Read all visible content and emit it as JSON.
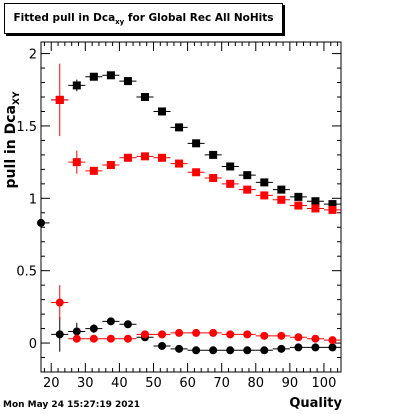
{
  "title": {
    "main": "Fitted pull in Dca",
    "sub": "xy",
    "tail": "for Global Rec All NoHits"
  },
  "ylabel": {
    "main": "pull in Dca",
    "sub": "XY"
  },
  "xlabel": "Quality",
  "timestamp": "Mon May 24 15:27:19 2021",
  "colors": {
    "black": "#000000",
    "red": "#ff0000",
    "frame": "#000000"
  },
  "chart_data": {
    "type": "scatter",
    "xlim": [
      17,
      105
    ],
    "ylim": [
      -0.2,
      2.08
    ],
    "xticks": [
      20,
      30,
      40,
      50,
      60,
      70,
      80,
      90,
      100
    ],
    "yticks": [
      0,
      0.5,
      1,
      1.5,
      2
    ],
    "ytick_labels": [
      "0",
      "0.5",
      "1",
      "1.5",
      "2"
    ],
    "grid": false,
    "series": [
      {
        "marker": "square",
        "color": "black",
        "x": [
          22.5,
          27.5,
          32.5,
          37.5,
          42.5,
          47.5,
          52.5,
          57.5,
          62.5,
          67.5,
          72.5,
          77.5,
          82.5,
          87.5,
          92.5,
          97.5,
          102.5
        ],
        "y": [
          1.68,
          1.78,
          1.84,
          1.85,
          1.81,
          1.7,
          1.6,
          1.49,
          1.38,
          1.3,
          1.22,
          1.16,
          1.11,
          1.06,
          1.01,
          0.98,
          0.96
        ],
        "yerr": [
          0,
          0.04,
          0.02,
          0.02,
          0,
          0,
          0,
          0,
          0,
          0,
          0,
          0,
          0,
          0,
          0,
          0,
          0
        ]
      },
      {
        "marker": "square",
        "color": "red",
        "x": [
          22.5,
          27.5,
          32.5,
          37.5,
          42.5,
          47.5,
          52.5,
          57.5,
          62.5,
          67.5,
          72.5,
          77.5,
          82.5,
          87.5,
          92.5,
          97.5,
          102.5
        ],
        "y": [
          1.68,
          1.25,
          1.19,
          1.23,
          1.28,
          1.29,
          1.28,
          1.24,
          1.18,
          1.14,
          1.1,
          1.06,
          1.02,
          0.99,
          0.95,
          0.93,
          0.92
        ],
        "yerr": [
          0.25,
          0.08,
          0,
          0,
          0,
          0,
          0,
          0,
          0,
          0,
          0,
          0,
          0,
          0,
          0,
          0,
          0
        ]
      },
      {
        "marker": "circle",
        "color": "black",
        "x": [
          17,
          22.5,
          27.5,
          32.5,
          37.5,
          42.5,
          47.5,
          52.5,
          57.5,
          62.5,
          67.5,
          72.5,
          77.5,
          82.5,
          87.5,
          92.5,
          97.5,
          102.5
        ],
        "y": [
          0.83,
          0.06,
          0.08,
          0.1,
          0.15,
          0.13,
          0.04,
          -0.02,
          -0.04,
          -0.05,
          -0.05,
          -0.05,
          -0.05,
          -0.05,
          -0.04,
          -0.03,
          -0.03,
          -0.03
        ],
        "yerr": [
          0,
          0.12,
          0.06,
          0.03,
          0.02,
          0,
          0,
          0,
          0,
          0,
          0,
          0,
          0,
          0,
          0,
          0,
          0,
          0
        ]
      },
      {
        "marker": "circle",
        "color": "red",
        "x": [
          22.5,
          27.5,
          32.5,
          37.5,
          42.5,
          47.5,
          52.5,
          57.5,
          62.5,
          67.5,
          72.5,
          77.5,
          82.5,
          87.5,
          92.5,
          97.5,
          102.5
        ],
        "y": [
          0.28,
          0.03,
          0.03,
          0.03,
          0.03,
          0.06,
          0.06,
          0.07,
          0.07,
          0.07,
          0.06,
          0.06,
          0.05,
          0.05,
          0.04,
          0.03,
          0.02
        ],
        "yerr": [
          0.12,
          0.02,
          0,
          0,
          0,
          0,
          0,
          0,
          0,
          0,
          0,
          0,
          0,
          0,
          0,
          0,
          0
        ]
      }
    ]
  }
}
